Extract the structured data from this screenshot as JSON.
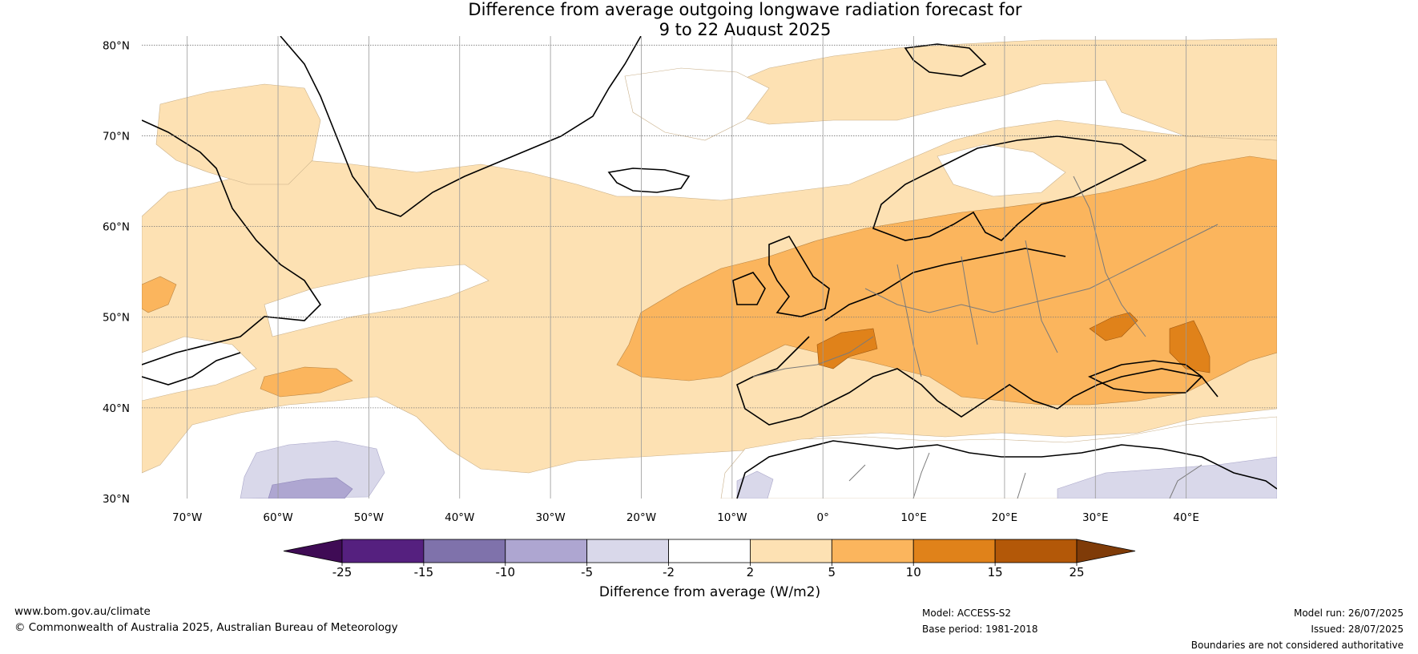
{
  "title": {
    "line1": "Difference from average outgoing longwave radiation forecast for",
    "line2": "9 to 22 August 2025"
  },
  "map": {
    "lat_labels": [
      "80°N",
      "70°N",
      "60°N",
      "50°N",
      "40°N",
      "30°N"
    ],
    "lon_labels": [
      "70°W",
      "60°W",
      "50°W",
      "40°W",
      "30°W",
      "20°W",
      "10°W",
      "0°",
      "10°E",
      "20°E",
      "30°E",
      "40°E"
    ]
  },
  "colorbar": {
    "ticks": [
      "-25",
      "-15",
      "-10",
      "-5",
      "-2",
      "2",
      "5",
      "10",
      "15",
      "25"
    ],
    "label": "Difference from average (W/m2)",
    "colors": {
      "extend_low": "#3f0b55",
      "bins": [
        "#55207f",
        "#7f72ab",
        "#aea6d1",
        "#d9d8ea",
        "#ffffff",
        "#fde1b3",
        "#fbb55d",
        "#e0821a",
        "#b35808"
      ],
      "extend_high": "#7f3b08"
    }
  },
  "footer": {
    "website": "www.bom.gov.au/climate",
    "copyright": "© Commonwealth of Australia 2025, Australian Bureau of Meteorology",
    "model": "Model: ACCESS-S2",
    "base_period": "Base period: 1981-2018",
    "model_run": "Model run: 26/07/2025",
    "issued": "Issued: 28/07/2025",
    "disclaimer": "Boundaries are not considered authoritative"
  }
}
